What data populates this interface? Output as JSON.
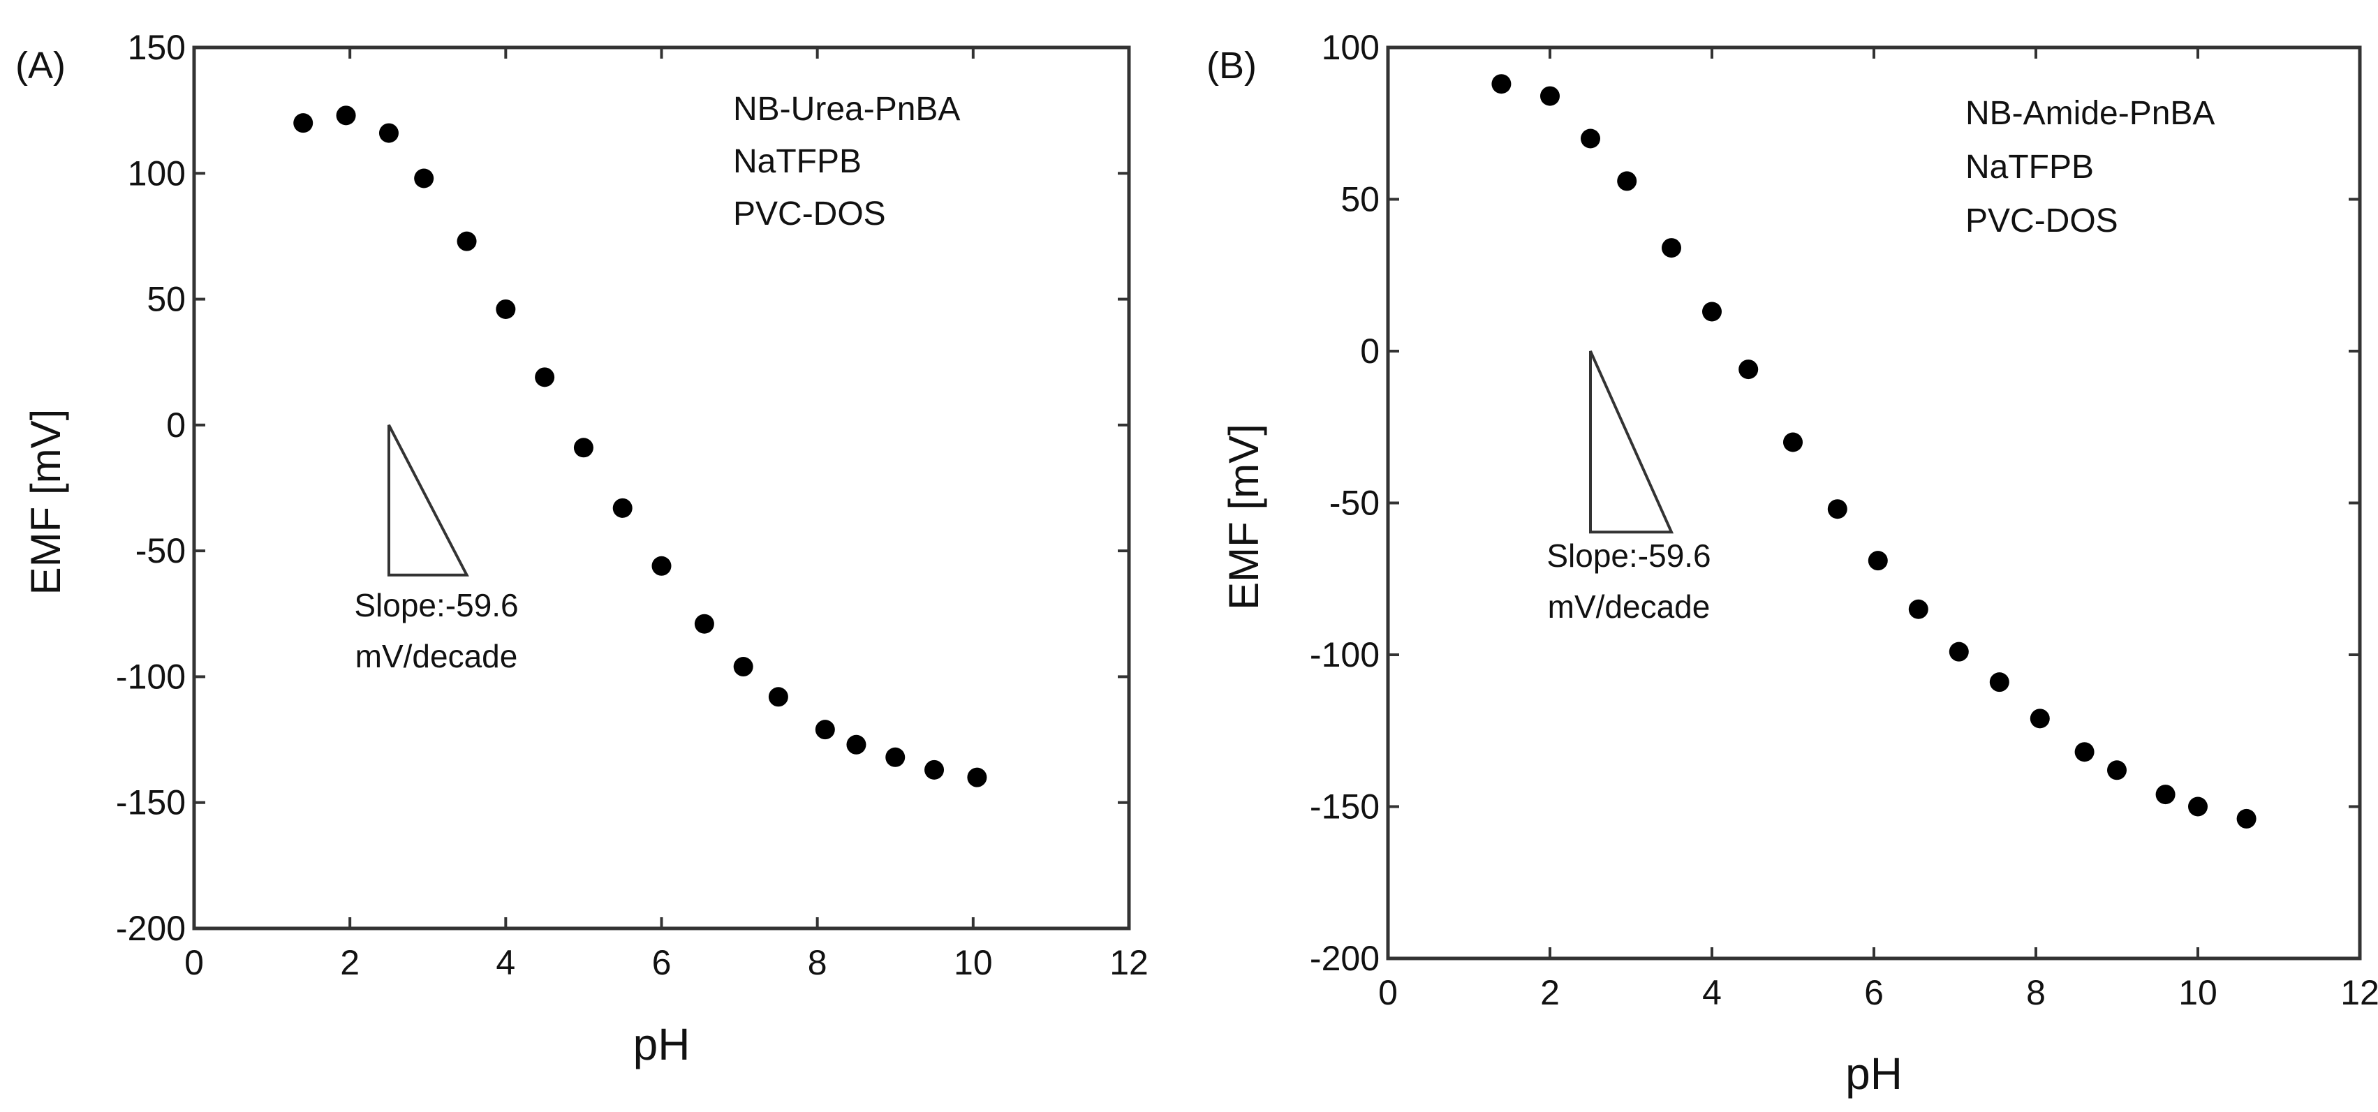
{
  "chart_data": [
    {
      "panel_label": "(A)",
      "type": "scatter",
      "xlabel": "pH",
      "ylabel": "EMF [mV]",
      "xlim": [
        0,
        12
      ],
      "ylim": [
        -200,
        150
      ],
      "xticks": [
        0,
        2,
        4,
        6,
        8,
        10,
        12
      ],
      "yticks": [
        -200,
        -150,
        -100,
        -50,
        0,
        50,
        100,
        150
      ],
      "x_tick_labels": [
        "0",
        "2",
        "4",
        "6",
        "8",
        "10",
        "12"
      ],
      "y_tick_labels": [
        "-200",
        "-150",
        "-100",
        "-50",
        "0",
        "50",
        "100",
        "150"
      ],
      "legend": [
        "NB-Urea-PnBA",
        "NaTFPB",
        "PVC-DOS"
      ],
      "slope_annotation": [
        "Slope:-59.6",
        "mV/decade"
      ],
      "slope_triangle": {
        "x": [
          2.5,
          3.5
        ],
        "y": [
          0,
          -59.6
        ]
      },
      "series": [
        {
          "name": "NB-Urea-PnBA",
          "x": [
            1.4,
            1.95,
            2.5,
            2.95,
            3.5,
            4.0,
            4.5,
            5.0,
            5.5,
            6.0,
            6.55,
            7.05,
            7.5,
            8.1,
            8.5,
            9.0,
            9.5,
            10.05
          ],
          "y": [
            120,
            123,
            116,
            98,
            73,
            46,
            19,
            -9,
            -33,
            -56,
            -79,
            -96,
            -108,
            -121,
            -127,
            -132,
            -137,
            -140
          ]
        }
      ]
    },
    {
      "panel_label": "(B)",
      "type": "scatter",
      "xlabel": "pH",
      "ylabel": "EMF [mV]",
      "xlim": [
        0,
        12
      ],
      "ylim": [
        -200,
        100
      ],
      "xticks": [
        0,
        2,
        4,
        6,
        8,
        10,
        12
      ],
      "yticks": [
        -200,
        -150,
        -100,
        -50,
        0,
        50,
        100
      ],
      "x_tick_labels": [
        "0",
        "2",
        "4",
        "6",
        "8",
        "10",
        "12"
      ],
      "y_tick_labels": [
        "-200",
        "-150",
        "-100",
        "-50",
        "0",
        "50",
        "100"
      ],
      "legend": [
        "NB-Amide-PnBA",
        "NaTFPB",
        "PVC-DOS"
      ],
      "slope_annotation": [
        "Slope:-59.6",
        "mV/decade"
      ],
      "slope_triangle": {
        "x": [
          2.5,
          3.5
        ],
        "y": [
          0,
          -59.6
        ]
      },
      "series": [
        {
          "name": "NB-Amide-PnBA",
          "x": [
            1.4,
            2.0,
            2.5,
            2.95,
            3.5,
            4.0,
            4.45,
            5.0,
            5.55,
            6.05,
            6.55,
            7.05,
            7.55,
            8.05,
            8.6,
            9.0,
            9.6,
            10.0,
            10.6
          ],
          "y": [
            88,
            84,
            70,
            56,
            34,
            13,
            -6,
            -30,
            -52,
            -69,
            -85,
            -99,
            -109,
            -121,
            -132,
            -138,
            -146,
            -150,
            -154
          ]
        }
      ]
    }
  ]
}
